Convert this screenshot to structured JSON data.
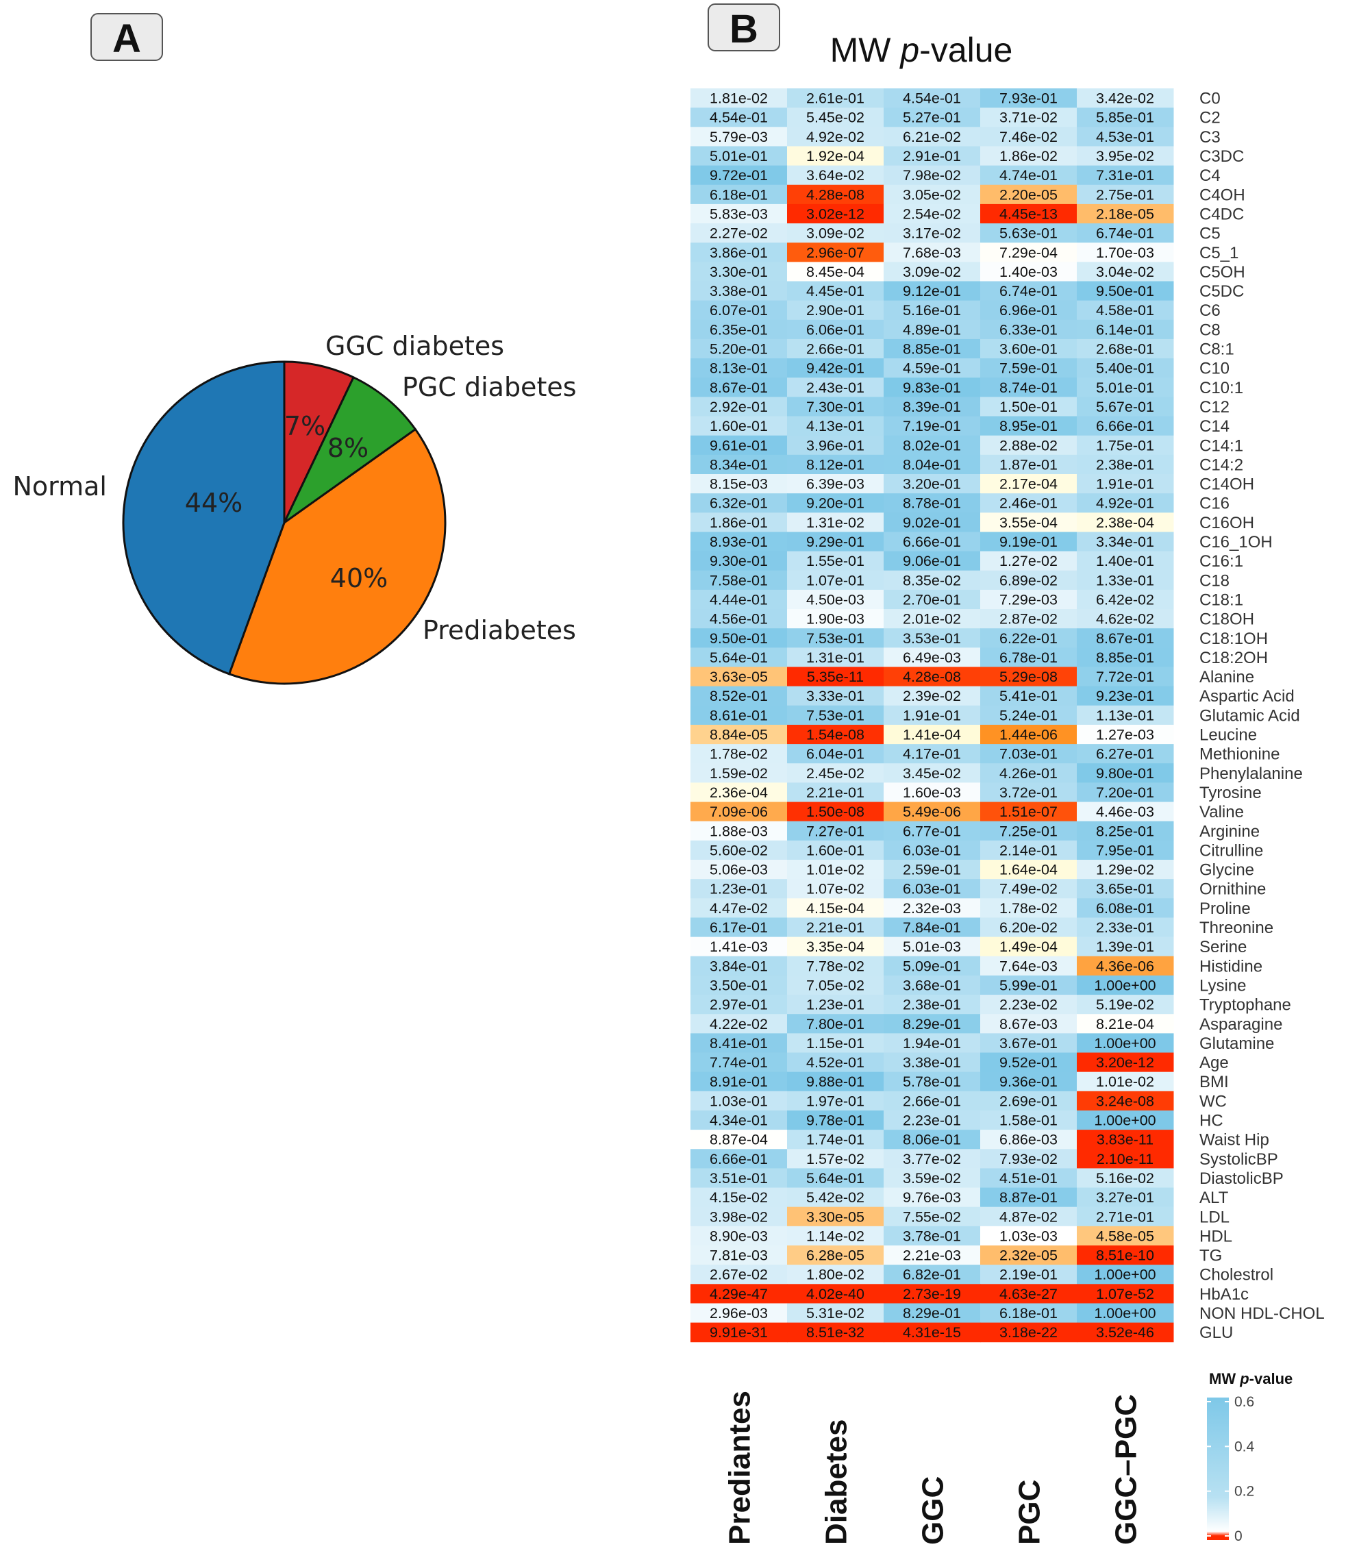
{
  "panels": {
    "a": "A",
    "b": "B"
  },
  "chart_data": [
    {
      "type": "pie",
      "categories": [
        "GGC diabetes",
        "PGC diabetes",
        "Prediabetes",
        "Normal"
      ],
      "values": [
        7,
        8,
        40,
        44
      ],
      "value_labels": [
        "7%",
        "8%",
        "40%",
        "44%"
      ],
      "colors": [
        "#d62728",
        "#2ca02c",
        "#ff7f0e",
        "#1f77b4"
      ]
    },
    {
      "type": "heatmap",
      "title": "MW p-value",
      "columns": [
        "Prediantes",
        "Diabetes",
        "GGC",
        "PGC",
        "GGC–PGC"
      ],
      "rows": [
        "C0",
        "C2",
        "C3",
        "C3DC",
        "C4",
        "C4OH",
        "C4DC",
        "C5",
        "C5_1",
        "C5OH",
        "C5DC",
        "C6",
        "C8",
        "C8:1",
        "C10",
        "C10:1",
        "C12",
        "C14",
        "C14:1",
        "C14:2",
        "C14OH",
        "C16",
        "C16OH",
        "C16_1OH",
        "C16:1",
        "C18",
        "C18:1",
        "C18OH",
        "C18:1OH",
        "C18:2OH",
        "Alanine",
        "Aspartic Acid",
        "Glutamic Acid",
        "Leucine",
        "Methionine",
        "Phenylalanine",
        "Tyrosine",
        "Valine",
        "Arginine",
        "Citrulline",
        "Glycine",
        "Ornithine",
        "Proline",
        "Threonine",
        "Serine",
        "Histidine",
        "Lysine",
        "Tryptophane",
        "Asparagine",
        "Glutamine",
        "Age",
        "BMI",
        "WC",
        "HC",
        "Waist Hip",
        "SystolicBP",
        "DiastolicBP",
        "ALT",
        "LDL",
        "HDL",
        "TG",
        "Cholestrol",
        "HbA1c",
        "NON HDL-CHOL",
        "GLU"
      ],
      "values": [
        [
          "1.81e-02",
          "2.61e-01",
          "4.54e-01",
          "7.93e-01",
          "3.42e-02"
        ],
        [
          "4.54e-01",
          "5.45e-02",
          "5.27e-01",
          "3.71e-02",
          "5.85e-01"
        ],
        [
          "5.79e-03",
          "4.92e-02",
          "6.21e-02",
          "7.46e-02",
          "4.53e-01"
        ],
        [
          "5.01e-01",
          "1.92e-04",
          "2.91e-01",
          "1.86e-02",
          "3.95e-02"
        ],
        [
          "9.72e-01",
          "3.64e-02",
          "7.98e-02",
          "4.74e-01",
          "7.31e-01"
        ],
        [
          "6.18e-01",
          "4.28e-08",
          "3.05e-02",
          "2.20e-05",
          "2.75e-01"
        ],
        [
          "5.83e-03",
          "3.02e-12",
          "2.54e-02",
          "4.45e-13",
          "2.18e-05"
        ],
        [
          "2.27e-02",
          "3.09e-02",
          "3.17e-02",
          "5.63e-01",
          "6.74e-01"
        ],
        [
          "3.86e-01",
          "2.96e-07",
          "7.68e-03",
          "7.29e-04",
          "1.70e-03"
        ],
        [
          "3.30e-01",
          "8.45e-04",
          "3.09e-02",
          "1.40e-03",
          "3.04e-02"
        ],
        [
          "3.38e-01",
          "4.45e-01",
          "9.12e-01",
          "6.74e-01",
          "9.50e-01"
        ],
        [
          "6.07e-01",
          "2.90e-01",
          "5.16e-01",
          "6.96e-01",
          "4.58e-01"
        ],
        [
          "6.35e-01",
          "6.06e-01",
          "4.89e-01",
          "6.33e-01",
          "6.14e-01"
        ],
        [
          "5.20e-01",
          "2.66e-01",
          "8.85e-01",
          "3.60e-01",
          "2.68e-01"
        ],
        [
          "8.13e-01",
          "9.42e-01",
          "4.59e-01",
          "7.59e-01",
          "5.40e-01"
        ],
        [
          "8.67e-01",
          "2.43e-01",
          "9.83e-01",
          "8.74e-01",
          "5.01e-01"
        ],
        [
          "2.92e-01",
          "7.30e-01",
          "8.39e-01",
          "1.50e-01",
          "5.67e-01"
        ],
        [
          "1.60e-01",
          "4.13e-01",
          "7.19e-01",
          "8.95e-01",
          "6.66e-01"
        ],
        [
          "9.61e-01",
          "3.96e-01",
          "8.02e-01",
          "2.88e-02",
          "1.75e-01"
        ],
        [
          "8.34e-01",
          "8.12e-01",
          "8.04e-01",
          "1.87e-01",
          "2.38e-01"
        ],
        [
          "8.15e-03",
          "6.39e-03",
          "3.20e-01",
          "2.17e-04",
          "1.91e-01"
        ],
        [
          "6.32e-01",
          "9.20e-01",
          "8.78e-01",
          "2.46e-01",
          "4.92e-01"
        ],
        [
          "1.86e-01",
          "1.31e-02",
          "9.02e-01",
          "3.55e-04",
          "2.38e-04"
        ],
        [
          "8.93e-01",
          "9.29e-01",
          "6.66e-01",
          "9.19e-01",
          "3.34e-01"
        ],
        [
          "9.30e-01",
          "1.55e-01",
          "9.06e-01",
          "1.27e-02",
          "1.40e-01"
        ],
        [
          "7.58e-01",
          "1.07e-01",
          "8.35e-02",
          "6.89e-02",
          "1.33e-01"
        ],
        [
          "4.44e-01",
          "4.50e-03",
          "2.70e-01",
          "7.29e-03",
          "6.42e-02"
        ],
        [
          "4.56e-01",
          "1.90e-03",
          "2.01e-02",
          "2.87e-02",
          "4.62e-02"
        ],
        [
          "9.50e-01",
          "7.53e-01",
          "3.53e-01",
          "6.22e-01",
          "8.67e-01"
        ],
        [
          "5.64e-01",
          "1.31e-01",
          "6.49e-03",
          "6.78e-01",
          "8.85e-01"
        ],
        [
          "3.63e-05",
          "5.35e-11",
          "4.28e-08",
          "5.29e-08",
          "7.72e-01"
        ],
        [
          "8.52e-01",
          "3.33e-01",
          "2.39e-02",
          "5.41e-01",
          "9.23e-01"
        ],
        [
          "8.61e-01",
          "7.53e-01",
          "1.91e-01",
          "5.24e-01",
          "1.13e-01"
        ],
        [
          "8.84e-05",
          "1.54e-08",
          "1.41e-04",
          "1.44e-06",
          "1.27e-03"
        ],
        [
          "1.78e-02",
          "6.04e-01",
          "4.17e-01",
          "7.03e-01",
          "6.27e-01"
        ],
        [
          "1.59e-02",
          "2.45e-02",
          "3.45e-02",
          "4.26e-01",
          "9.80e-01"
        ],
        [
          "2.36e-04",
          "2.21e-01",
          "1.60e-03",
          "3.72e-01",
          "7.20e-01"
        ],
        [
          "7.09e-06",
          "1.50e-08",
          "5.49e-06",
          "1.51e-07",
          "4.46e-03"
        ],
        [
          "1.88e-03",
          "7.27e-01",
          "6.77e-01",
          "7.25e-01",
          "8.25e-01"
        ],
        [
          "5.60e-02",
          "1.60e-01",
          "6.03e-01",
          "2.14e-01",
          "7.95e-01"
        ],
        [
          "5.06e-03",
          "1.01e-02",
          "2.59e-01",
          "1.64e-04",
          "1.29e-02"
        ],
        [
          "1.23e-01",
          "1.07e-02",
          "6.03e-01",
          "7.49e-02",
          "3.65e-01"
        ],
        [
          "4.47e-02",
          "4.15e-04",
          "2.32e-03",
          "1.78e-02",
          "6.08e-01"
        ],
        [
          "6.17e-01",
          "2.21e-01",
          "7.84e-01",
          "6.20e-02",
          "2.33e-01"
        ],
        [
          "1.41e-03",
          "3.35e-04",
          "5.01e-03",
          "1.49e-04",
          "1.39e-01"
        ],
        [
          "3.84e-01",
          "7.78e-02",
          "5.09e-01",
          "7.64e-03",
          "4.36e-06"
        ],
        [
          "3.50e-01",
          "7.05e-02",
          "3.68e-01",
          "5.99e-01",
          "1.00e+00"
        ],
        [
          "2.97e-01",
          "1.23e-01",
          "2.38e-01",
          "2.23e-02",
          "5.19e-02"
        ],
        [
          "4.22e-02",
          "7.80e-01",
          "8.29e-01",
          "8.67e-03",
          "8.21e-04"
        ],
        [
          "8.41e-01",
          "1.15e-01",
          "1.94e-01",
          "3.67e-01",
          "1.00e+00"
        ],
        [
          "7.74e-01",
          "4.52e-01",
          "3.38e-01",
          "9.52e-01",
          "3.20e-12"
        ],
        [
          "8.91e-01",
          "9.88e-01",
          "5.78e-01",
          "9.36e-01",
          "1.01e-02"
        ],
        [
          "1.03e-01",
          "1.97e-01",
          "2.66e-01",
          "2.69e-01",
          "3.24e-08"
        ],
        [
          "4.34e-01",
          "9.78e-01",
          "2.23e-01",
          "1.58e-01",
          "1.00e+00"
        ],
        [
          "8.87e-04",
          "1.74e-01",
          "8.06e-01",
          "6.86e-03",
          "3.83e-11"
        ],
        [
          "6.66e-01",
          "1.57e-02",
          "3.77e-02",
          "7.93e-02",
          "2.10e-11"
        ],
        [
          "3.51e-01",
          "5.64e-01",
          "3.59e-02",
          "4.51e-01",
          "5.16e-02"
        ],
        [
          "4.15e-02",
          "5.42e-02",
          "9.76e-03",
          "8.87e-01",
          "3.27e-01"
        ],
        [
          "3.98e-02",
          "3.30e-05",
          "7.55e-02",
          "4.87e-02",
          "2.71e-01"
        ],
        [
          "8.90e-03",
          "1.14e-02",
          "3.78e-01",
          "1.03e-03",
          "4.58e-05"
        ],
        [
          "7.81e-03",
          "6.28e-05",
          "2.21e-03",
          "2.32e-05",
          "8.51e-10"
        ],
        [
          "2.67e-02",
          "1.80e-02",
          "6.82e-01",
          "2.19e-01",
          "1.00e+00"
        ],
        [
          "4.29e-47",
          "4.02e-40",
          "2.73e-19",
          "4.63e-27",
          "1.07e-52"
        ],
        [
          "2.96e-03",
          "5.31e-02",
          "8.29e-01",
          "6.18e-01",
          "1.00e+00"
        ],
        [
          "9.91e-31",
          "8.51e-32",
          "4.31e-15",
          "3.18e-22",
          "3.52e-46"
        ]
      ],
      "legend": {
        "title": "MW p-value",
        "ticks": [
          "0.6",
          "0.4",
          "0.2",
          "0"
        ],
        "tick_values": [
          0.6,
          0.4,
          0.2,
          0
        ],
        "range": [
          0,
          0.6
        ]
      },
      "colors": {
        "high": "#7ec8e8",
        "mid": "#ffffff",
        "low_yellow": "#fffad2",
        "low_orange": "#ff8c1a",
        "low_red": "#ff2a00"
      }
    }
  ]
}
